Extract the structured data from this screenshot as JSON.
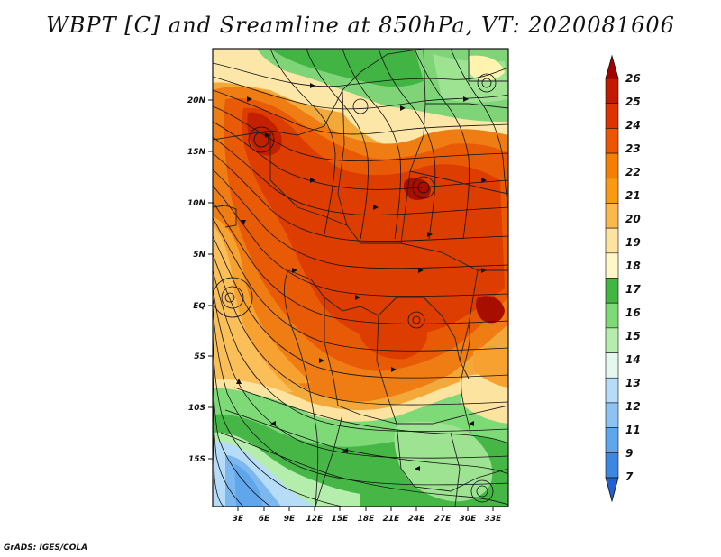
{
  "title": "WBPT [C] and Sreamline at 850hPa, VT: 2020081606",
  "credit": "GrADS: IGES/COLA",
  "map": {
    "lon_ticks": [
      "3E",
      "6E",
      "9E",
      "12E",
      "15E",
      "18E",
      "21E",
      "24E",
      "27E",
      "30E",
      "33E"
    ],
    "lat_ticks": [
      "20N",
      "15N",
      "10N",
      "5N",
      "EQ",
      "5S",
      "10S",
      "15S"
    ],
    "lon_values": [
      3,
      6,
      9,
      12,
      15,
      18,
      21,
      24,
      27,
      30,
      33
    ],
    "lat_values": [
      20,
      15,
      10,
      5,
      0,
      -5,
      -10,
      -15
    ],
    "lon_range": [
      0.3,
      35.0
    ],
    "lat_range": [
      -20.0,
      24.5
    ]
  },
  "colorbar": {
    "levels": [
      "26",
      "25",
      "24",
      "23",
      "22",
      "21",
      "20",
      "19",
      "18",
      "17",
      "16",
      "15",
      "14",
      "13",
      "12",
      "11",
      "9",
      "7"
    ],
    "colors": [
      "#a50000",
      "#c21a00",
      "#dd3300",
      "#ee5500",
      "#f77f00",
      "#f99b10",
      "#fbb84d",
      "#fde3a0",
      "#fff7c8",
      "#41b641",
      "#7ed977",
      "#b5eeac",
      "#e5f8f0",
      "#b6dcf7",
      "#8cc3f3",
      "#5fa6ec",
      "#3c87e0",
      "#2060d0"
    ]
  }
}
